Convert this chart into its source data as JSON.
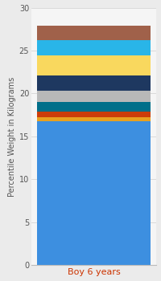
{
  "category": "Boy 6 years",
  "ylabel": "Percentile Weight in Kilograms",
  "ylim": [
    0,
    30
  ],
  "yticks": [
    0,
    5,
    10,
    15,
    20,
    25,
    30
  ],
  "fig_background": "#ebebeb",
  "plot_background": "#f5f5f5",
  "segments": [
    {
      "value": 16.8,
      "color": "#3d8fe0"
    },
    {
      "value": 0.45,
      "color": "#e8a020"
    },
    {
      "value": 0.65,
      "color": "#cc3d0a"
    },
    {
      "value": 1.1,
      "color": "#006f8a"
    },
    {
      "value": 1.3,
      "color": "#b8b8b8"
    },
    {
      "value": 1.8,
      "color": "#1e3860"
    },
    {
      "value": 2.3,
      "color": "#f9d85e"
    },
    {
      "value": 1.8,
      "color": "#29b5e8"
    },
    {
      "value": 1.7,
      "color": "#a0614a"
    }
  ],
  "bar_width": 0.45,
  "tick_label_fontsize": 7,
  "ylabel_fontsize": 7,
  "xlabel_fontsize": 8,
  "xlabel_color": "#cc3300",
  "ylabel_color": "#555555",
  "ytick_color": "#555555",
  "grid_color": "#d5d5d5",
  "spine_color": "#bbbbbb"
}
